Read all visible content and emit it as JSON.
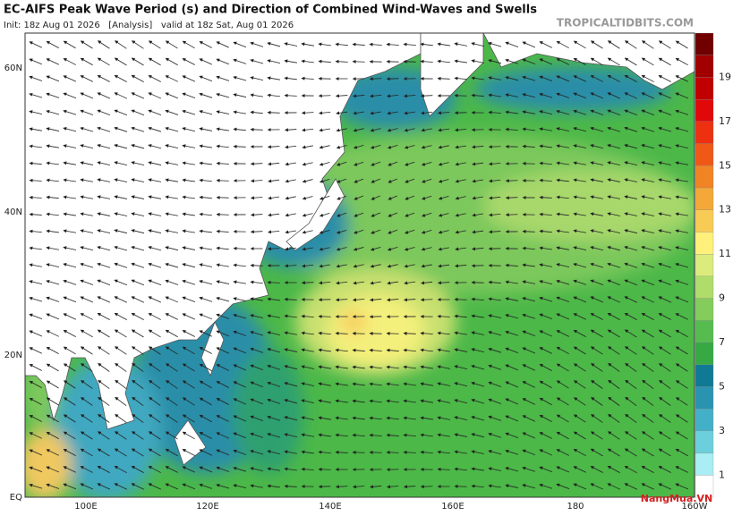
{
  "header": {
    "title": "EC-AIFS Peak Wave Period (s) and Direction of Combined Wind-Waves and Swells",
    "init": "Init: 18z Aug 01 2026   [Analysis]   valid at 18z Sat, Aug 01 2026",
    "watermark": "TROPICALTIDBITS.COM"
  },
  "lat_labels": [
    "60N",
    "40N",
    "20N",
    "EQ"
  ],
  "lon_labels": [
    "100E",
    "120E",
    "140E",
    "160E",
    "180",
    "160W"
  ],
  "colorbar_labels": [
    "1",
    "3",
    "5",
    "7",
    "9",
    "11",
    "13",
    "15",
    "17",
    "19"
  ],
  "logo": "NangMua.VN"
}
